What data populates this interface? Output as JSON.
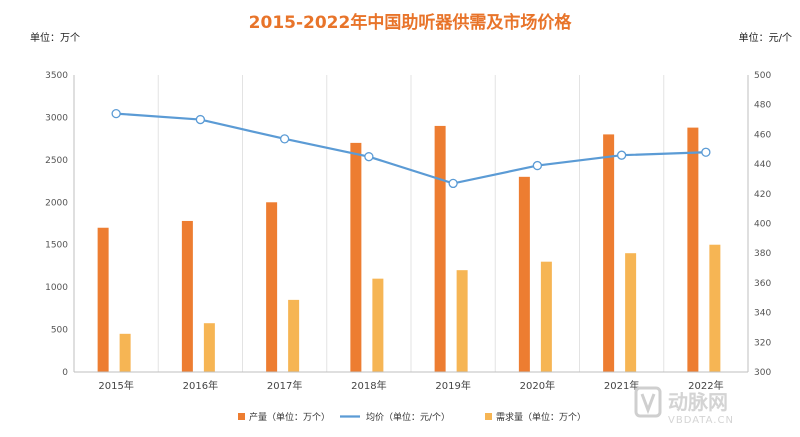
{
  "chart_data": {
    "type": "bar",
    "title": "2015-2022年中国助听器供需及市场价格",
    "left_unit_label": "单位：万个",
    "right_unit_label": "单位：元/个",
    "categories": [
      "2015年",
      "2016年",
      "2017年",
      "2018年",
      "2019年",
      "2020年",
      "2021年",
      "2022年"
    ],
    "series": [
      {
        "name": "产量（单位：万个）",
        "kind": "bar",
        "axis": "left",
        "color": "#ed7d31",
        "values": [
          1700,
          1780,
          2000,
          2700,
          2900,
          2300,
          2800,
          2880
        ]
      },
      {
        "name": "需求量（单位：万个）",
        "kind": "bar",
        "axis": "left",
        "color": "#f6b554",
        "values": [
          450,
          575,
          850,
          1100,
          1200,
          1300,
          1400,
          1500
        ]
      },
      {
        "name": "均价（单位：元/个）",
        "kind": "line",
        "axis": "right",
        "color": "#5b9bd5",
        "values": [
          474,
          470,
          457,
          445,
          427,
          439,
          446,
          448
        ]
      }
    ],
    "y_left": {
      "min": 0,
      "max": 3500,
      "ticks": [
        0,
        500,
        1000,
        1500,
        2000,
        2500,
        3000,
        3500
      ]
    },
    "y_right": {
      "min": 300,
      "max": 500,
      "ticks": [
        300,
        320,
        340,
        360,
        380,
        400,
        420,
        440,
        460,
        480,
        500
      ]
    },
    "legend_order": [
      0,
      2,
      1
    ],
    "legend_position": "bottom",
    "grid": "vertical"
  },
  "watermark": {
    "text": "动脉网",
    "sub": "VBDATA.CN"
  }
}
